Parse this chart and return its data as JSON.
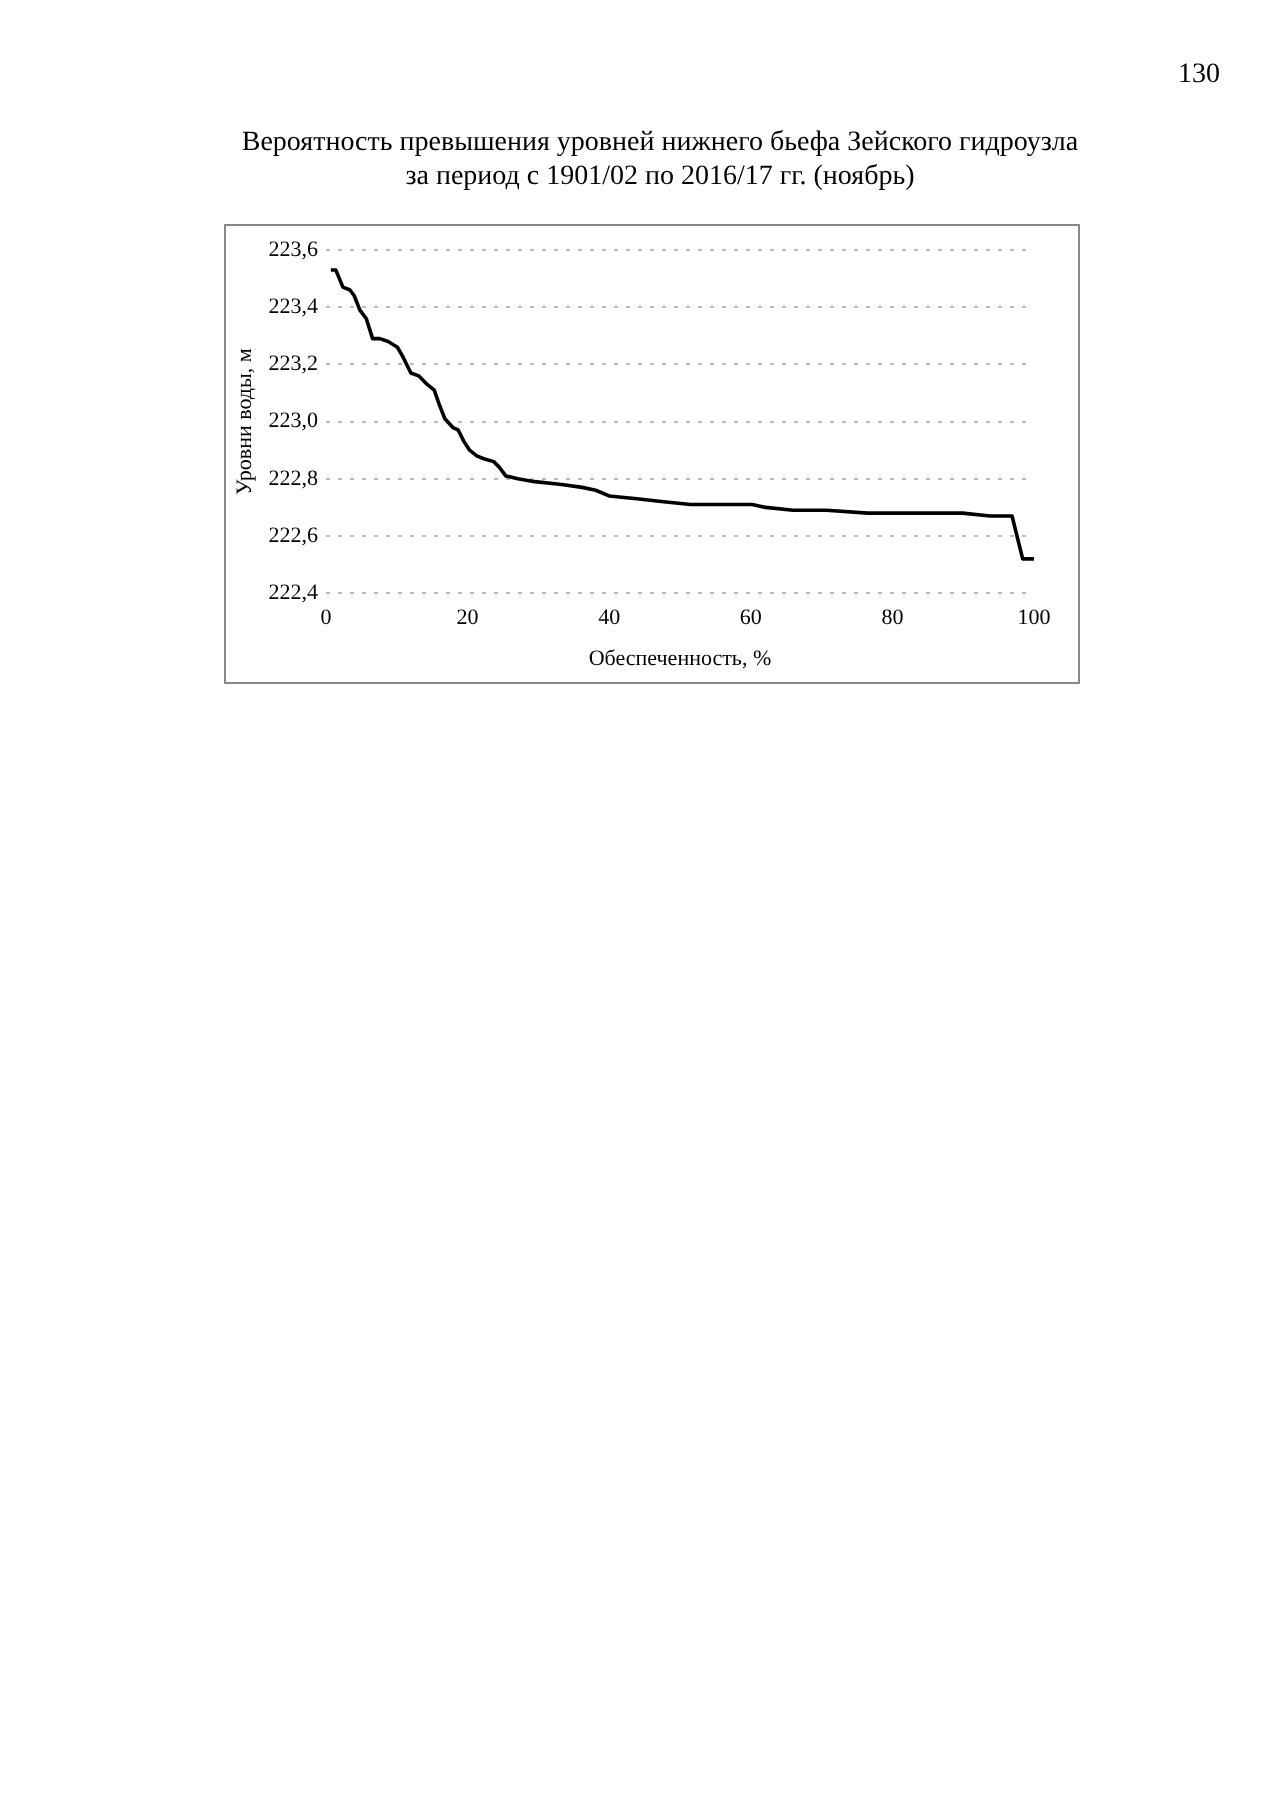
{
  "chart_data": {
    "type": "line",
    "title": "Вероятность превышения уровней нижнего бьефа Зейского гидроузла\nза период с 1901/02 по 2016/17 гг. (ноябрь)",
    "xlabel": "Обеспеченность, %",
    "ylabel": "Уровни воды, м",
    "annotations": [
      "130"
    ],
    "series": [
      {
        "color": "#000000",
        "x": [
          0.7,
          1.4,
          2.4,
          3.4,
          4.0,
          4.8,
          5.7,
          6.6,
          7.6,
          8.8,
          10.1,
          10.8,
          12.0,
          13.1,
          14.3,
          15.3,
          16.0,
          16.8,
          17.9,
          18.7,
          19.5,
          20.3,
          21.3,
          22.3,
          23.7,
          24.5,
          25.4,
          27.1,
          29.5,
          33.3,
          36.2,
          38.1,
          40.0,
          43.9,
          47.7,
          51.5,
          55.4,
          60.2,
          62.1,
          66.0,
          70.7,
          76.5,
          85.1,
          89.9,
          93.8,
          96.9,
          97.6,
          98.4,
          100.0
        ],
        "values": [
          223.53,
          223.53,
          223.47,
          223.46,
          223.44,
          223.39,
          223.36,
          223.29,
          223.29,
          223.28,
          223.26,
          223.23,
          223.17,
          223.16,
          223.13,
          223.11,
          223.06,
          223.01,
          222.98,
          222.97,
          222.93,
          222.9,
          222.88,
          222.87,
          222.86,
          222.84,
          222.81,
          222.8,
          222.79,
          222.78,
          222.77,
          222.76,
          222.74,
          222.73,
          222.72,
          222.71,
          222.71,
          222.71,
          222.7,
          222.69,
          222.69,
          222.68,
          222.68,
          222.68,
          222.67,
          222.67,
          222.6,
          222.52,
          222.52
        ]
      }
    ],
    "xlim": [
      0,
      100
    ],
    "xticks": [
      0,
      20,
      40,
      60,
      80,
      100
    ],
    "ylim": [
      222.4,
      223.6
    ],
    "yticks": [
      {
        "value": 222.4,
        "label": "222,4"
      },
      {
        "value": 222.6,
        "label": "222,6"
      },
      {
        "value": 222.8,
        "label": "222,8"
      },
      {
        "value": 223.0,
        "label": "223,0"
      },
      {
        "value": 223.2,
        "label": "223,2"
      },
      {
        "value": 223.4,
        "label": "223,4"
      },
      {
        "value": 223.6,
        "label": "223,6"
      }
    ],
    "grid": "y",
    "line_style": "solid",
    "marker": "none",
    "legend": false
  }
}
